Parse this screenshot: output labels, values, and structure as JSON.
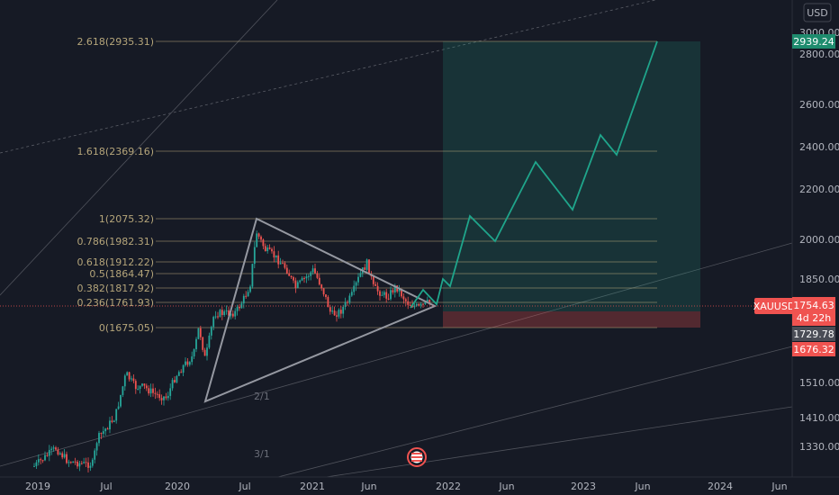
{
  "currency": "USD",
  "symbol": "XAUUSD",
  "price_axis": {
    "ticks": [
      "3000.00",
      "2800.00",
      "2600.00",
      "2400.00",
      "2200.00",
      "2000.00",
      "1850.00",
      "1510.00",
      "1410.00",
      "1330.00"
    ]
  },
  "time_axis": {
    "labels": [
      "2019",
      "Jul",
      "2020",
      "Jul",
      "2021",
      "Jun",
      "2022",
      "Jun",
      "2023",
      "Jun",
      "2024",
      "Jun"
    ]
  },
  "fib_levels": [
    {
      "label": "2.618(2935.31)",
      "value": 2935.31
    },
    {
      "label": "1.618(2369.16)",
      "value": 2369.16
    },
    {
      "label": "1(2075.32)",
      "value": 2075.32
    },
    {
      "label": "0.786(1982.31)",
      "value": 1982.31
    },
    {
      "label": "0.618(1912.22)",
      "value": 1912.22
    },
    {
      "label": "0.5(1864.47)",
      "value": 1864.47
    },
    {
      "label": "0.382(1817.92)",
      "value": 1817.92
    },
    {
      "label": "0.236(1761.93)",
      "value": 1761.93
    },
    {
      "label": "0(1675.05)",
      "value": 1675.05
    }
  ],
  "channel_labels": [
    "2/1",
    "3/1"
  ],
  "price_tags": {
    "target": {
      "value": "2939.24",
      "color": "#1e8c6e"
    },
    "current": {
      "value": "1754.63",
      "countdown": "4d 22h",
      "color": "#ef5350"
    },
    "entry": {
      "value": "1729.78",
      "color": "#4a4d56"
    },
    "stop": {
      "value": "1676.32",
      "color": "#ef5350"
    }
  },
  "colors": {
    "background": "#161a25",
    "up": "#26a69a",
    "down": "#ef5350",
    "fib": "#b5a57a",
    "projection": "#1fa58b"
  }
}
